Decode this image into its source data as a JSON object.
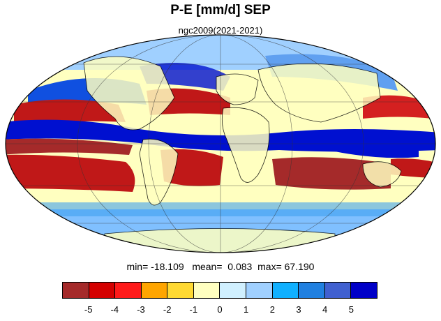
{
  "title": "P-E [mm/d] SEP",
  "subtitle": "ngc2009(2021-2021)",
  "stats": {
    "min_label": "min=",
    "min_value": "-18.109",
    "mean_label": "mean=",
    "mean_value": "0.083",
    "max_label": "max=",
    "max_value": "67.190"
  },
  "colorbar": {
    "colors": [
      "#a52a2a",
      "#d40000",
      "#ff1a1a",
      "#ffa500",
      "#ffd932",
      "#ffffc0",
      "#d0f0ff",
      "#a0d0ff",
      "#10b0ff",
      "#2080e0",
      "#4060d0",
      "#0000c8"
    ],
    "tick_labels": [
      "-5",
      "-4",
      "-3",
      "-2",
      "-1",
      "0",
      "1",
      "2",
      "3",
      "4",
      "5"
    ]
  },
  "map": {
    "projection": "mollweide",
    "colors": {
      "ocean_dry": "#c01818",
      "ocean_neutral": "#ffffc0",
      "wet": "#0010d0",
      "moderate_wet": "#60a0f0",
      "land_outline": "#000000"
    }
  }
}
